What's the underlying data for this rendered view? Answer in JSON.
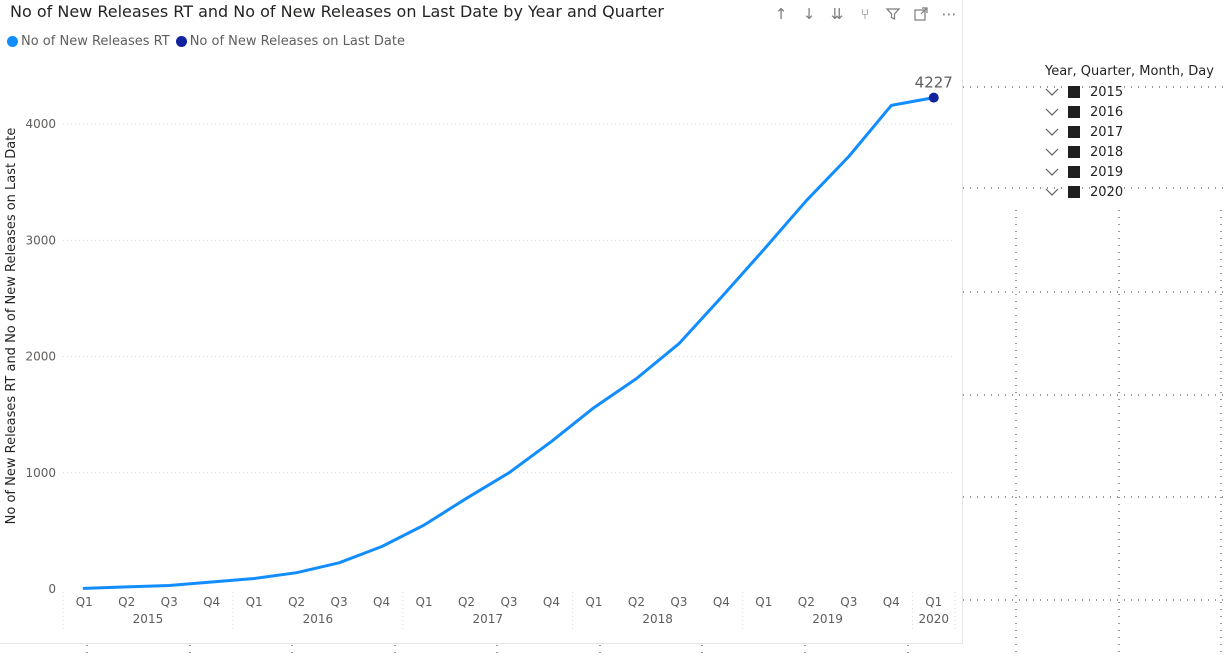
{
  "visual": {
    "title": "No of New Releases RT and No of New Releases on Last Date by Year and Quarter",
    "toolbar": [
      {
        "name": "drill-up-icon",
        "glyph": "↑"
      },
      {
        "name": "drill-down-icon",
        "glyph": "↓"
      },
      {
        "name": "expand-next-level-icon",
        "glyph": "⇊"
      },
      {
        "name": "expand-hierarchy-icon",
        "glyph": "⑂"
      },
      {
        "name": "filter-icon",
        "glyph": "filter"
      },
      {
        "name": "focus-mode-icon",
        "glyph": "focus"
      },
      {
        "name": "more-options-icon",
        "glyph": "⋯"
      }
    ]
  },
  "colors": {
    "series_rt": "#118DFF",
    "series_last": "#12239E",
    "grid": "#d9d9d9",
    "text_muted": "#605e5c"
  },
  "chart_data": {
    "type": "line",
    "title": "No of New Releases RT and No of New Releases on Last Date by Year and Quarter",
    "ylabel": "No of New Releases RT and No of New Releases on Last Date",
    "xlabel": "",
    "ylim": [
      0,
      4400
    ],
    "yticks": [
      0,
      1000,
      2000,
      3000,
      4000
    ],
    "grid": true,
    "legend_position": "top-left",
    "categories": [
      {
        "year": "2015",
        "quarter": "Q1"
      },
      {
        "year": "2015",
        "quarter": "Q2"
      },
      {
        "year": "2015",
        "quarter": "Q3"
      },
      {
        "year": "2015",
        "quarter": "Q4"
      },
      {
        "year": "2016",
        "quarter": "Q1"
      },
      {
        "year": "2016",
        "quarter": "Q2"
      },
      {
        "year": "2016",
        "quarter": "Q3"
      },
      {
        "year": "2016",
        "quarter": "Q4"
      },
      {
        "year": "2017",
        "quarter": "Q1"
      },
      {
        "year": "2017",
        "quarter": "Q2"
      },
      {
        "year": "2017",
        "quarter": "Q3"
      },
      {
        "year": "2017",
        "quarter": "Q4"
      },
      {
        "year": "2018",
        "quarter": "Q1"
      },
      {
        "year": "2018",
        "quarter": "Q2"
      },
      {
        "year": "2018",
        "quarter": "Q3"
      },
      {
        "year": "2018",
        "quarter": "Q4"
      },
      {
        "year": "2019",
        "quarter": "Q1"
      },
      {
        "year": "2019",
        "quarter": "Q2"
      },
      {
        "year": "2019",
        "quarter": "Q3"
      },
      {
        "year": "2019",
        "quarter": "Q4"
      },
      {
        "year": "2020",
        "quarter": "Q1"
      }
    ],
    "years": [
      "2015",
      "2016",
      "2017",
      "2018",
      "2019",
      "2020"
    ],
    "series": [
      {
        "name": "No of New Releases RT",
        "values": [
          5,
          18,
          30,
          60,
          90,
          140,
          225,
          365,
          550,
          780,
          1000,
          1270,
          1560,
          1810,
          2110,
          2510,
          2920,
          3340,
          3720,
          4160,
          4227
        ]
      },
      {
        "name": "No of New Releases on Last Date",
        "points": [
          {
            "index": 20,
            "value": 4227
          }
        ],
        "data_label": "4227"
      }
    ]
  },
  "slicer": {
    "title": "Year, Quarter, Month, Day",
    "items": [
      "2015",
      "2016",
      "2017",
      "2018",
      "2019",
      "2020"
    ]
  }
}
